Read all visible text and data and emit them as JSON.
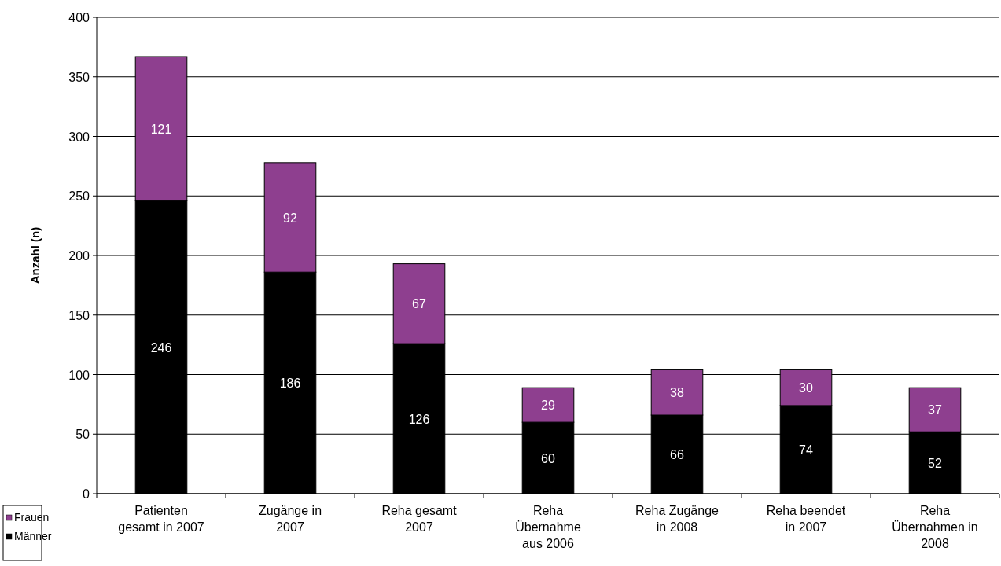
{
  "chart_data": {
    "type": "bar",
    "stacked": true,
    "ylabel": "Anzahl (n)",
    "categories": [
      "Patienten gesamt in 2007",
      "Zugänge in 2007",
      "Reha gesamt 2007",
      "Reha Übernahme aus 2006",
      "Reha Zugänge in 2008",
      "Reha beendet in 2007",
      "Reha Übernahmen in 2008"
    ],
    "series": [
      {
        "name": "Männer",
        "color": "#000000",
        "values": [
          246,
          186,
          126,
          60,
          66,
          74,
          52
        ]
      },
      {
        "name": "Frauen",
        "color": "#8e3f8f",
        "values": [
          121,
          92,
          67,
          29,
          38,
          30,
          37
        ]
      }
    ],
    "ylim": [
      0,
      400
    ],
    "yticks": [
      0,
      50,
      100,
      150,
      200,
      250,
      300,
      350,
      400
    ],
    "grid": "y",
    "legend": "bottom left",
    "data_labels": true
  }
}
